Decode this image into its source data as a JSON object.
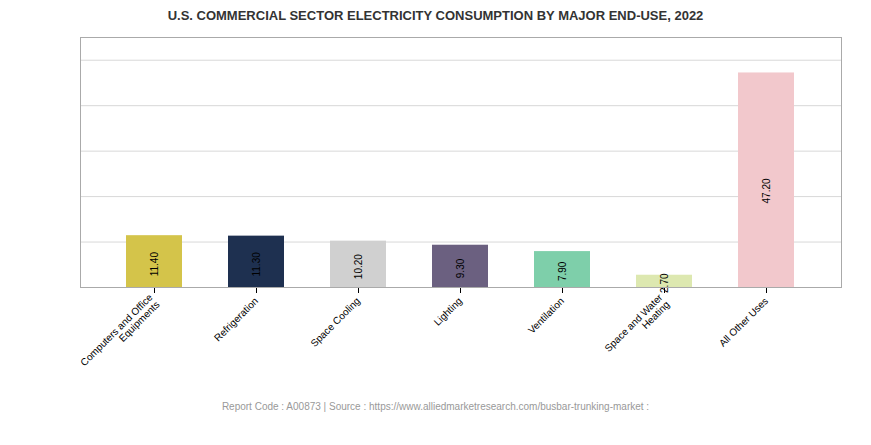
{
  "chart_data": {
    "type": "bar",
    "title": "U.S. COMMERCIAL SECTOR ELECTRICITY CONSUMPTION BY MAJOR END-USE, 2022",
    "categories": [
      "Computers and Office\nEquipments",
      "Refrigeration",
      "Space Cooling",
      "Lighting",
      "Ventilation",
      "Space and Water\nHeating",
      "All Other Uses"
    ],
    "values": [
      11.4,
      11.3,
      10.2,
      9.3,
      7.9,
      2.7,
      47.2
    ],
    "value_labels": [
      "11.40",
      "11.30",
      "10.20",
      "9.30",
      "7.90",
      "2.70",
      "47.20"
    ],
    "colors": [
      "#d4c44a",
      "#1e3050",
      "#d0d0d0",
      "#6b6080",
      "#7ecfaa",
      "#dde8b0",
      "#f2c8cc"
    ],
    "ylim": [
      0,
      55
    ],
    "yticks": [
      0,
      10,
      20,
      30,
      40,
      50
    ],
    "grid": true,
    "data_labels": true,
    "tick_labels": "x",
    "caption": "Report Code : A00873  |  Source : https://www.alliedmarketresearch.com/busbar-trunking-market :"
  }
}
